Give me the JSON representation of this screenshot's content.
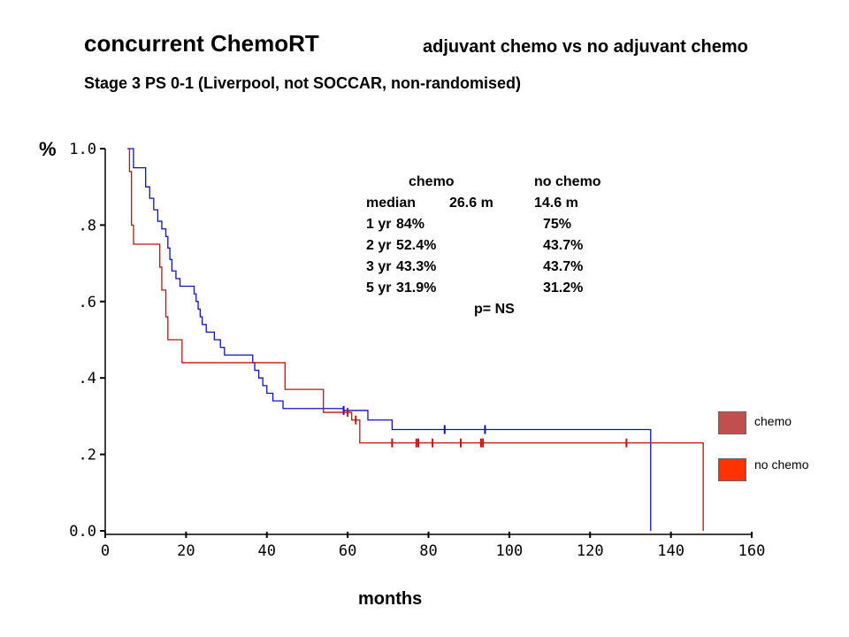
{
  "header": {
    "title": "concurrent ChemoRT",
    "subtitle": "adjuvant chemo  vs no adjuvant chemo",
    "line2": "Stage 3  PS 0-1 (Liverpool, not SOCCAR, non-randomised)"
  },
  "stats": {
    "col1": "chemo",
    "col2": "no chemo",
    "rows": [
      {
        "label": "median",
        "a": "26.6 m",
        "b": "14.6 m"
      },
      {
        "label": "1 yr",
        "a": "84%",
        "b": "75%"
      },
      {
        "label": "2 yr",
        "a": "52.4%",
        "b": "43.7%"
      },
      {
        "label": "3 yr",
        "a": "43.3%",
        "b": "43.7%"
      },
      {
        "label": "5 yr",
        "a": "31.9%",
        "b": "31.2%"
      }
    ],
    "pvalue": "p= NS"
  },
  "legend": {
    "items": [
      {
        "label": "chemo",
        "color": "#c0504d"
      },
      {
        "label": "no chemo",
        "color": "#ff3300"
      }
    ]
  },
  "chart_data": {
    "type": "line",
    "subtype": "kaplan-meier step",
    "xlabel": "months",
    "ylabel": "%",
    "xlim": [
      0,
      160
    ],
    "ylim": [
      0,
      1
    ],
    "x_ticks": [
      0,
      20,
      40,
      60,
      80,
      100,
      120,
      140,
      160
    ],
    "y_ticks": [
      {
        "value": 0,
        "label": "0.0"
      },
      {
        "value": 0.2,
        "label": ".2"
      },
      {
        "value": 0.4,
        "label": ".4"
      },
      {
        "value": 0.6,
        "label": ".6"
      },
      {
        "value": 0.8,
        "label": ".8"
      },
      {
        "value": 1.0,
        "label": "1.0"
      }
    ],
    "series": [
      {
        "color": "#1010c0",
        "steps": [
          [
            5.5,
            1.0
          ],
          [
            7,
            0.95
          ],
          [
            10,
            0.9
          ],
          [
            11,
            0.87
          ],
          [
            12,
            0.84
          ],
          [
            13,
            0.81
          ],
          [
            14,
            0.79
          ],
          [
            15,
            0.77
          ],
          [
            15.5,
            0.74
          ],
          [
            16,
            0.71
          ],
          [
            16.5,
            0.68
          ],
          [
            17.5,
            0.66
          ],
          [
            18.5,
            0.64
          ],
          [
            22,
            0.62
          ],
          [
            22.5,
            0.6
          ],
          [
            23,
            0.58
          ],
          [
            23.5,
            0.56
          ],
          [
            24,
            0.54
          ],
          [
            25,
            0.52
          ],
          [
            27,
            0.5
          ],
          [
            28.5,
            0.48
          ],
          [
            29.5,
            0.46
          ],
          [
            36.5,
            0.44
          ],
          [
            37,
            0.42
          ],
          [
            38,
            0.4
          ],
          [
            39,
            0.38
          ],
          [
            40,
            0.36
          ],
          [
            41.5,
            0.34
          ],
          [
            44,
            0.32
          ],
          [
            59,
            0.315
          ],
          [
            65,
            0.29
          ],
          [
            71,
            0.265
          ],
          [
            135,
            0.0
          ]
        ],
        "end_x": 135,
        "censor_x": [
          59,
          84,
          94
        ]
      },
      {
        "color": "#c01010",
        "steps": [
          [
            5.5,
            1.0
          ],
          [
            6,
            0.94
          ],
          [
            6.5,
            0.8
          ],
          [
            7,
            0.75
          ],
          [
            13.5,
            0.69
          ],
          [
            14,
            0.63
          ],
          [
            15,
            0.56
          ],
          [
            15.5,
            0.5
          ],
          [
            19,
            0.44
          ],
          [
            44.5,
            0.37
          ],
          [
            54,
            0.31
          ],
          [
            61,
            0.29
          ],
          [
            63,
            0.23
          ],
          [
            148,
            0.0
          ]
        ],
        "end_x": 148,
        "censor_x": [
          60,
          62,
          71,
          77,
          77.5,
          81,
          88,
          93,
          93.5,
          129
        ]
      }
    ]
  }
}
